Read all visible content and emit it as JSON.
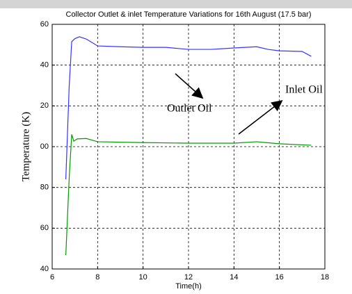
{
  "chart_data": {
    "type": "line",
    "title": "Collector Outlet & inlet Temperature Variations for 16th August (17.5 bar)",
    "xlabel": "Time(h)",
    "ylabel": "Temperature (K)",
    "annotations": [
      "Outlet Oil",
      "Inlet Oil"
    ],
    "series": [
      {
        "name": "Outlet Oil",
        "color": "#3333ff",
        "x": [
          6.6,
          6.75,
          6.86,
          7.0,
          7.2,
          7.5,
          8,
          9,
          10,
          11,
          12,
          13,
          14,
          15,
          15.5,
          16,
          17,
          17.4
        ],
        "values": [
          84,
          130,
          151.5,
          153,
          153.9,
          152.8,
          149.4,
          149,
          148.7,
          148.7,
          147.7,
          147.7,
          148.4,
          149,
          147.7,
          147,
          146.7,
          144.3
        ]
      },
      {
        "name": "Inlet Oil",
        "color": "#009900",
        "x": [
          6.6,
          6.75,
          6.86,
          6.95,
          7.1,
          7.5,
          8,
          10,
          12,
          14,
          15,
          16,
          17.4
        ],
        "values": [
          46.8,
          85,
          106,
          102.7,
          103.8,
          104,
          102.4,
          102,
          101.7,
          101.7,
          102.4,
          101.4,
          100.7
        ]
      }
    ],
    "xlim": [
      6,
      18
    ],
    "xticks": [
      6,
      8,
      10,
      12,
      14,
      16,
      18
    ],
    "ylim": [
      40,
      160
    ],
    "yticks": [
      40,
      60,
      80,
      {
        "value": 100,
        "label": "00"
      },
      {
        "value": 120,
        "label": "20"
      },
      {
        "value": 140,
        "label": "40"
      },
      {
        "value": 160,
        "label": "60"
      }
    ],
    "grid": true
  }
}
